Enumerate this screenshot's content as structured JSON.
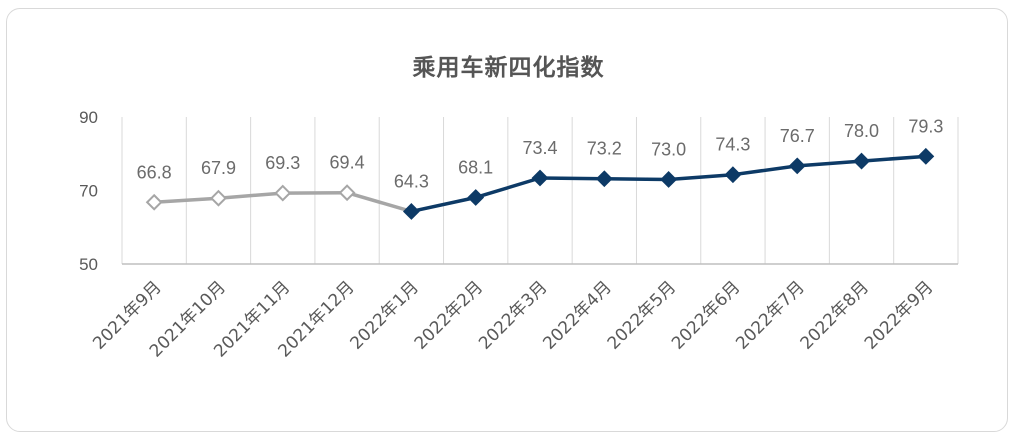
{
  "chart_data": {
    "type": "line",
    "title": "乘用车新四化指数",
    "xlabel": "",
    "ylabel": "",
    "ylim": [
      50,
      90
    ],
    "yticks": [
      50,
      70,
      90
    ],
    "grid": {
      "x": true,
      "y": false
    },
    "categories": [
      "2021年9月",
      "2021年10月",
      "2021年11月",
      "2021年12月",
      "2022年1月",
      "2022年2月",
      "2022年3月",
      "2022年4月",
      "2022年5月",
      "2022年6月",
      "2022年7月",
      "2022年8月",
      "2022年9月"
    ],
    "series": [
      {
        "values": [
          66.8,
          67.9,
          69.3,
          69.4,
          64.3,
          68.1,
          73.4,
          73.2,
          73.0,
          74.3,
          76.7,
          78.0,
          79.3
        ],
        "data_labels": [
          "66.8",
          "67.9",
          "69.3",
          "69.4",
          "64.3",
          "68.1",
          "73.4",
          "73.2",
          "73.0",
          "74.3",
          "76.7",
          "78.0",
          "79.3"
        ]
      }
    ],
    "colors": {
      "period_2021": "#a6a6a6",
      "period_2022": "#0d3a66",
      "marker_fill_2021": "#ffffff",
      "axis": "#bfbfbf",
      "gridline": "#d9d9d9"
    }
  }
}
